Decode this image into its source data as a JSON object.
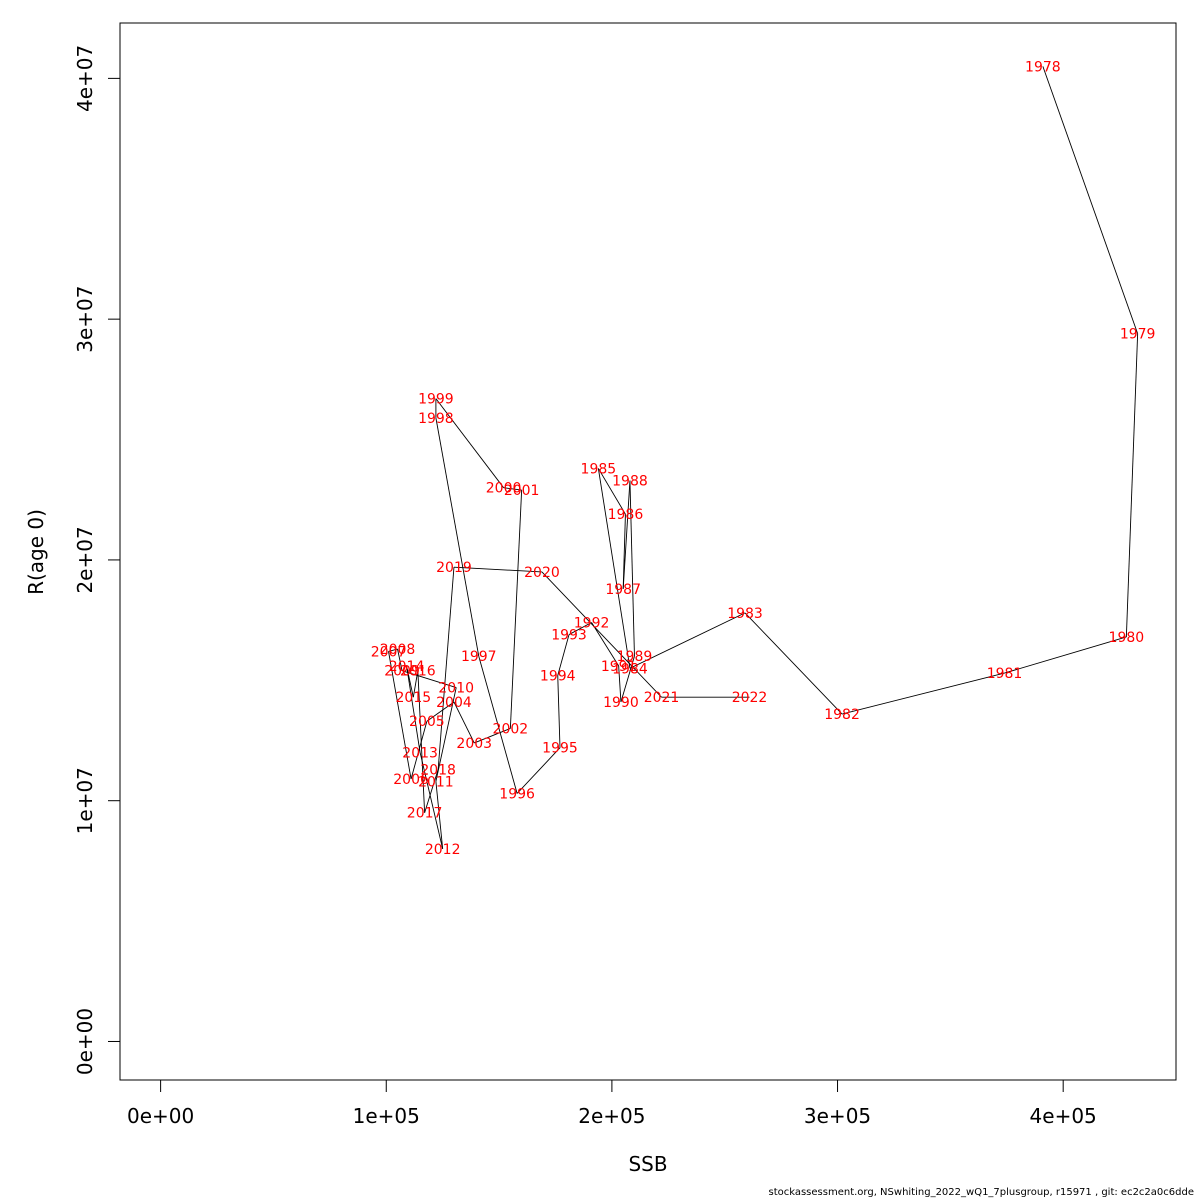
{
  "chart_data": {
    "type": "line",
    "xlabel": "SSB",
    "ylabel": "R(age 0)",
    "xlim": [
      -18000,
      450000
    ],
    "ylim": [
      -1600000,
      42300000
    ],
    "x_ticks": [
      0,
      100000,
      200000,
      300000,
      400000
    ],
    "x_tick_labels": [
      "0e+00",
      "1e+05",
      "2e+05",
      "3e+05",
      "4e+05"
    ],
    "y_ticks": [
      0,
      10000000,
      20000000,
      30000000,
      40000000
    ],
    "y_tick_labels": [
      "0e+00",
      "1e+07",
      "2e+07",
      "3e+07",
      "4e+07"
    ],
    "grid": false,
    "line_color": "#000000",
    "label_color": "#ff0000",
    "points": [
      {
        "year": "1978",
        "ssb": 391000,
        "rec": 40500000
      },
      {
        "year": "1979",
        "ssb": 433000,
        "rec": 29400000
      },
      {
        "year": "1980",
        "ssb": 428000,
        "rec": 16800000
      },
      {
        "year": "1981",
        "ssb": 374000,
        "rec": 15300000
      },
      {
        "year": "1982",
        "ssb": 302000,
        "rec": 13600000
      },
      {
        "year": "1983",
        "ssb": 259000,
        "rec": 17800000
      },
      {
        "year": "1984",
        "ssb": 208000,
        "rec": 15500000
      },
      {
        "year": "1985",
        "ssb": 194000,
        "rec": 23800000
      },
      {
        "year": "1986",
        "ssb": 206000,
        "rec": 21900000
      },
      {
        "year": "1987",
        "ssb": 205000,
        "rec": 18800000
      },
      {
        "year": "1988",
        "ssb": 208000,
        "rec": 23300000
      },
      {
        "year": "1989",
        "ssb": 210000,
        "rec": 16000000
      },
      {
        "year": "1990",
        "ssb": 204000,
        "rec": 14100000
      },
      {
        "year": "1991",
        "ssb": 203000,
        "rec": 15600000
      },
      {
        "year": "1992",
        "ssb": 191000,
        "rec": 17400000
      },
      {
        "year": "1993",
        "ssb": 181000,
        "rec": 16900000
      },
      {
        "year": "1994",
        "ssb": 176000,
        "rec": 15200000
      },
      {
        "year": "1995",
        "ssb": 177000,
        "rec": 12200000
      },
      {
        "year": "1996",
        "ssb": 158000,
        "rec": 10300000
      },
      {
        "year": "1997",
        "ssb": 141000,
        "rec": 16000000
      },
      {
        "year": "1998",
        "ssb": 122000,
        "rec": 25900000
      },
      {
        "year": "1999",
        "ssb": 122000,
        "rec": 26700000
      },
      {
        "year": "2000",
        "ssb": 152000,
        "rec": 23000000
      },
      {
        "year": "2001",
        "ssb": 160000,
        "rec": 22900000
      },
      {
        "year": "2002",
        "ssb": 155000,
        "rec": 13000000
      },
      {
        "year": "2003",
        "ssb": 139000,
        "rec": 12400000
      },
      {
        "year": "2004",
        "ssb": 130000,
        "rec": 14100000
      },
      {
        "year": "2005",
        "ssb": 118000,
        "rec": 13300000
      },
      {
        "year": "2006",
        "ssb": 111000,
        "rec": 10900000
      },
      {
        "year": "2007",
        "ssb": 101000,
        "rec": 16200000
      },
      {
        "year": "2008",
        "ssb": 105000,
        "rec": 16300000
      },
      {
        "year": "2009",
        "ssb": 107000,
        "rec": 15400000
      },
      {
        "year": "2010",
        "ssb": 131000,
        "rec": 14700000
      },
      {
        "year": "2011",
        "ssb": 122000,
        "rec": 10800000
      },
      {
        "year": "2012",
        "ssb": 125000,
        "rec": 8000000
      },
      {
        "year": "2013",
        "ssb": 115000,
        "rec": 12000000
      },
      {
        "year": "2014",
        "ssb": 109000,
        "rec": 15600000
      },
      {
        "year": "2015",
        "ssb": 112000,
        "rec": 14300000
      },
      {
        "year": "2016",
        "ssb": 114000,
        "rec": 15400000
      },
      {
        "year": "2017",
        "ssb": 117000,
        "rec": 9500000
      },
      {
        "year": "2018",
        "ssb": 123000,
        "rec": 11300000
      },
      {
        "year": "2019",
        "ssb": 130000,
        "rec": 19700000
      },
      {
        "year": "2020",
        "ssb": 169000,
        "rec": 19500000
      },
      {
        "year": "2021",
        "ssb": 222000,
        "rec": 14300000
      },
      {
        "year": "2022",
        "ssb": 261000,
        "rec": 14300000
      }
    ]
  },
  "footer": {
    "text": "stockassessment.org, NSwhiting_2022_wQ1_7plusgroup, r15971 , git: ec2c2a0c6dde"
  }
}
